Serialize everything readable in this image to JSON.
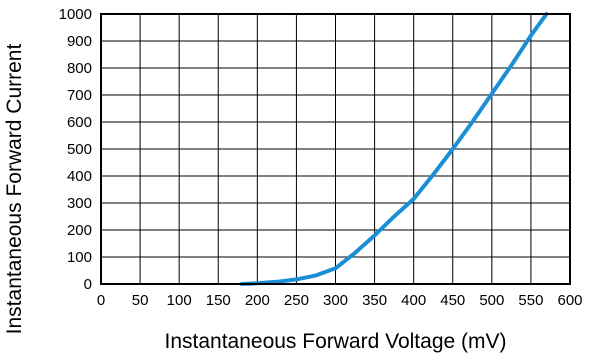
{
  "chart_data": {
    "type": "line",
    "title": "",
    "xlabel": "Instantaneous Forward Voltage (mV)",
    "ylabel": "Instantaneous Forward Current",
    "xlim": [
      0,
      600
    ],
    "ylim": [
      0,
      1000
    ],
    "x_ticks": [
      "0",
      "50",
      "100",
      "150",
      "200",
      "250",
      "300",
      "350",
      "400",
      "450",
      "500",
      "550",
      "600"
    ],
    "y_ticks": [
      "0",
      "100",
      "200",
      "300",
      "400",
      "500",
      "600",
      "700",
      "800",
      "900",
      "1000"
    ],
    "grid": true,
    "legend": "none",
    "series": [
      {
        "color": "#1a8fd6",
        "x": [
          180,
          200,
          225,
          250,
          275,
          300,
          325,
          350,
          375,
          400,
          425,
          450,
          475,
          500,
          525,
          550,
          570
        ],
        "y": [
          0,
          3,
          8,
          17,
          32,
          58,
          115,
          180,
          250,
          315,
          405,
          500,
          600,
          705,
          810,
          920,
          1000
        ]
      }
    ]
  }
}
